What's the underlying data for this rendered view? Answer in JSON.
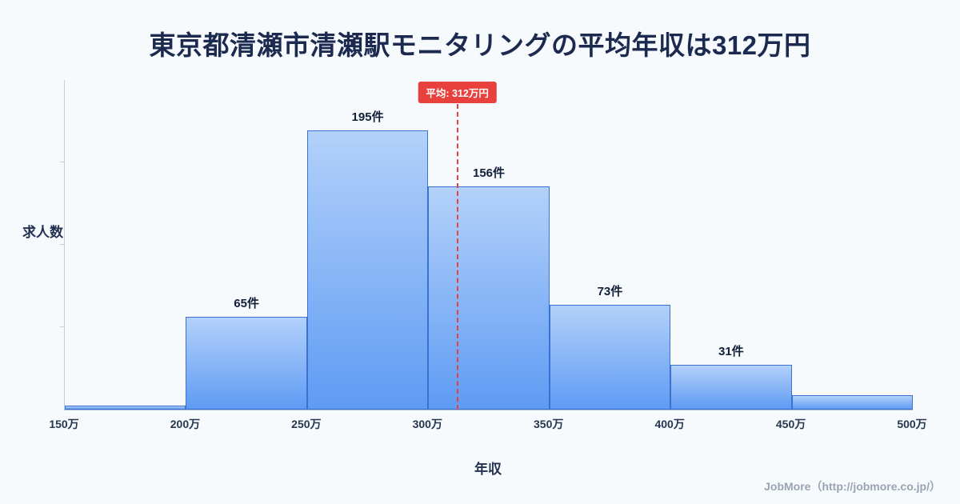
{
  "title": "東京都清瀬市清瀬駅モニタリングの平均年収は312万円",
  "chart_data": {
    "type": "bar",
    "subtype": "histogram",
    "title": "東京都清瀬市清瀬駅モニタリングの平均年収は312万円",
    "xlabel": "年収",
    "ylabel": "求人数",
    "x_ticks": [
      "150万",
      "200万",
      "250万",
      "300万",
      "350万",
      "400万",
      "450万",
      "500万"
    ],
    "ylim": [
      0,
      230
    ],
    "grid": "off",
    "bins": [
      {
        "range": "150万-200万",
        "value": 3,
        "label": ""
      },
      {
        "range": "200万-250万",
        "value": 65,
        "label": "65件"
      },
      {
        "range": "250万-300万",
        "value": 195,
        "label": "195件"
      },
      {
        "range": "300万-350万",
        "value": 156,
        "label": "156件"
      },
      {
        "range": "350万-400万",
        "value": 73,
        "label": "73件"
      },
      {
        "range": "400万-450万",
        "value": 31,
        "label": "31件"
      },
      {
        "range": "450万-500万",
        "value": 10,
        "label": ""
      }
    ],
    "average": {
      "value": 312,
      "label": "平均: 312万円",
      "axis_min": 150,
      "axis_max": 500
    },
    "colors": {
      "bar_top": "#b3d1fa",
      "bar_bottom": "#5f9bf3",
      "bar_border": "#3a72d4",
      "average_line": "#e8403d",
      "title_text": "#1b2a4e",
      "background": "#f7fafd"
    }
  },
  "footer": {
    "credit": "JobMore（http://jobmore.co.jp/）"
  }
}
